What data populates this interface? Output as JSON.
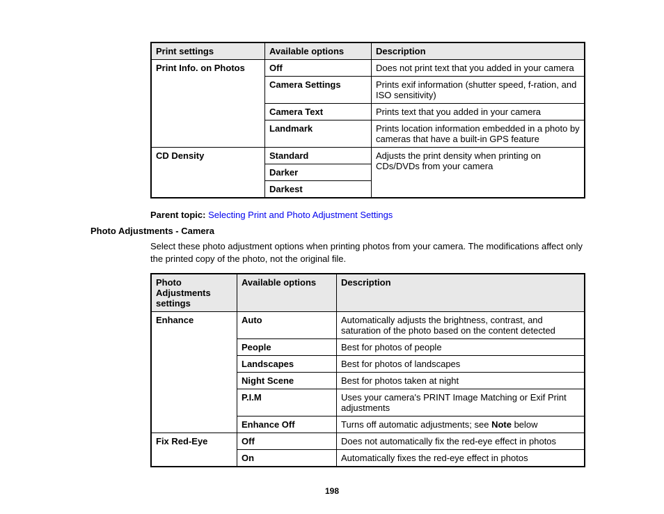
{
  "table1": {
    "headers": [
      "Print settings",
      "Available options",
      "Description"
    ],
    "groups": [
      {
        "setting": "Print Info. on Photos",
        "rows": [
          {
            "option": "Off",
            "desc": "Does not print text that you added in your camera"
          },
          {
            "option": "Camera Settings",
            "desc": "Prints exif information (shutter speed, f-ration, and ISO sensitivity)"
          },
          {
            "option": "Camera Text",
            "desc": "Prints text that you added in your camera"
          },
          {
            "option": "Landmark",
            "desc": "Prints location information embedded in a photo by cameras that have a built-in GPS feature"
          }
        ]
      },
      {
        "setting": "CD Density",
        "shared_desc": "Adjusts the print density when printing on CDs/DVDs from your camera",
        "rows": [
          {
            "option": "Standard"
          },
          {
            "option": "Darker"
          },
          {
            "option": "Darkest"
          }
        ]
      }
    ]
  },
  "parent_topic": {
    "label": "Parent topic:",
    "link_text": "Selecting Print and Photo Adjustment Settings"
  },
  "section_heading": "Photo Adjustments - Camera",
  "intro_text": "Select these photo adjustment options when printing photos from your camera. The modifications affect only the printed copy of the photo, not the original file.",
  "table2": {
    "headers": [
      "Photo Adjustments settings",
      "Available options",
      "Description"
    ],
    "groups": [
      {
        "setting": "Enhance",
        "rows": [
          {
            "option": "Auto",
            "desc": "Automatically adjusts the brightness, contrast, and saturation of the photo based on the content detected"
          },
          {
            "option": "People",
            "desc": "Best for photos of people"
          },
          {
            "option": "Landscapes",
            "desc": "Best for photos of landscapes"
          },
          {
            "option": "Night Scene",
            "desc": "Best for photos taken at night"
          },
          {
            "option": "P.I.M",
            "desc": "Uses your camera's PRINT Image Matching or Exif Print adjustments"
          },
          {
            "option": "Enhance Off",
            "desc_pre": "Turns off automatic adjustments; see ",
            "desc_bold": "Note",
            "desc_post": " below"
          }
        ]
      },
      {
        "setting": "Fix Red-Eye",
        "rows": [
          {
            "option": "Off",
            "desc": "Does not automatically fix the red-eye effect in photos"
          },
          {
            "option": "On",
            "desc": "Automatically fixes the red-eye effect in photos"
          }
        ]
      }
    ]
  },
  "page_number": "198"
}
